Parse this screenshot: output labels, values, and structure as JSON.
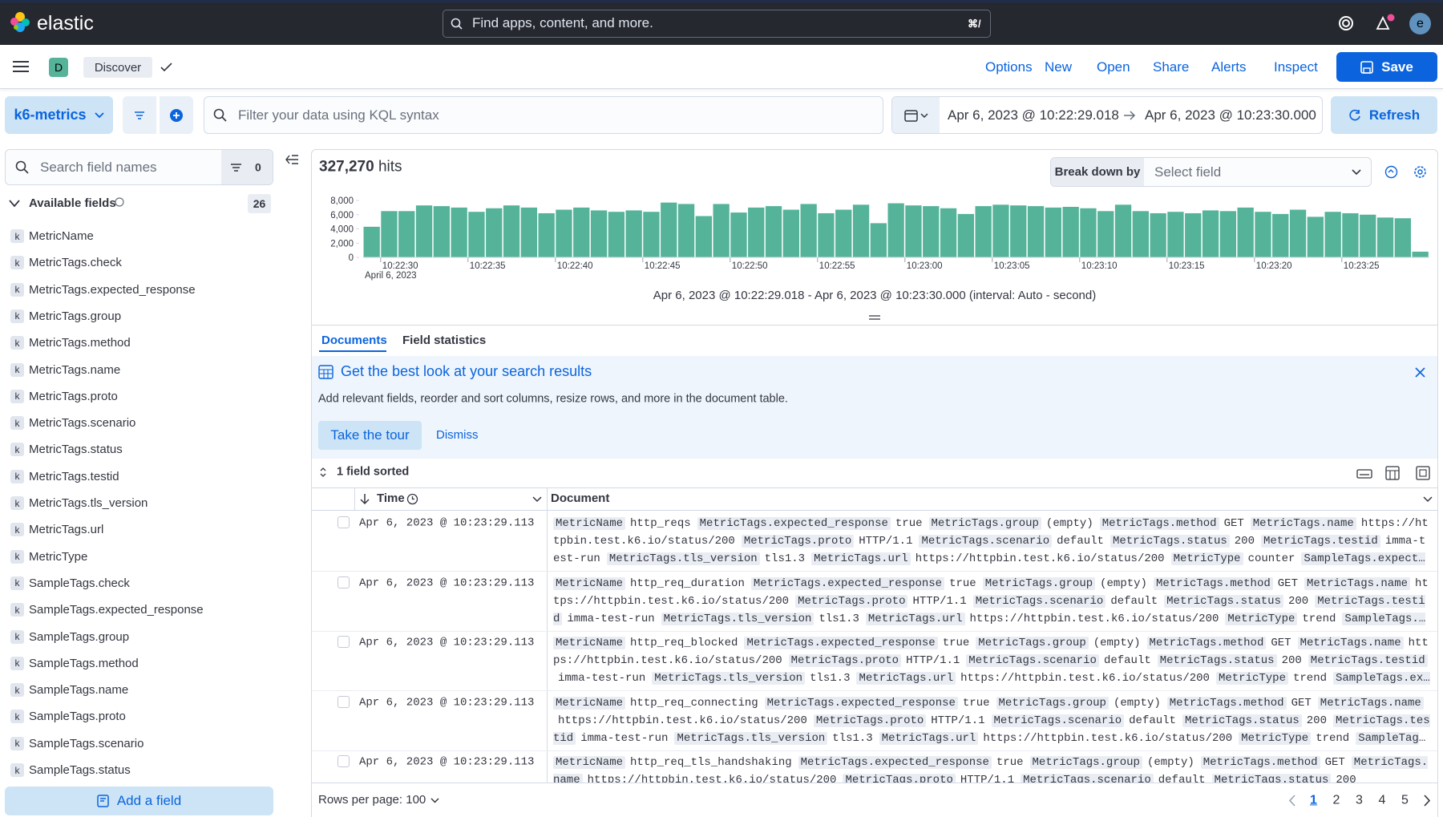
{
  "header": {
    "brand": "elastic",
    "search_placeholder": "Find apps, content, and more.",
    "shortcut": "⌘/",
    "avatar": "e"
  },
  "toolbar": {
    "space": "D",
    "app": "Discover",
    "links": [
      "Options",
      "New",
      "Open",
      "Share",
      "Alerts",
      "Inspect"
    ],
    "save": "Save"
  },
  "query_bar": {
    "data_view": "k6-metrics",
    "placeholder": "Filter your data using KQL syntax",
    "start": "Apr 6, 2023 @ 10:22:29.018",
    "end": "Apr 6, 2023 @ 10:23:30.000",
    "refresh": "Refresh"
  },
  "sidebar": {
    "search_placeholder": "Search field names",
    "filter_count": 0,
    "section": "Available fields",
    "field_count": 26,
    "field_type_icon": "k",
    "fields": [
      "MetricName",
      "MetricTags.check",
      "MetricTags.expected_response",
      "MetricTags.group",
      "MetricTags.method",
      "MetricTags.name",
      "MetricTags.proto",
      "MetricTags.scenario",
      "MetricTags.status",
      "MetricTags.testid",
      "MetricTags.tls_version",
      "MetricTags.url",
      "MetricType",
      "SampleTags.check",
      "SampleTags.expected_response",
      "SampleTags.group",
      "SampleTags.method",
      "SampleTags.name",
      "SampleTags.proto",
      "SampleTags.scenario",
      "SampleTags.status"
    ],
    "add_field": "Add a field"
  },
  "hits": {
    "count": "327,270",
    "label": "hits"
  },
  "break_down": {
    "label": "Break down by",
    "placeholder": "Select field"
  },
  "histogram": {
    "type": "bar",
    "color": "#54b399",
    "ylim": [
      0,
      8000
    ],
    "yticks": [
      {
        "value": 8000,
        "label": "8,000"
      },
      {
        "value": 6000,
        "label": "6,000"
      },
      {
        "value": 4000,
        "label": "4,000"
      },
      {
        "value": 2000,
        "label": "2,000"
      },
      0
    ],
    "categories": [
      null,
      "10:22:30",
      null,
      null,
      null,
      null,
      "10:22:35",
      null,
      null,
      null,
      null,
      "10:22:40",
      null,
      null,
      null,
      null,
      "10:22:45",
      null,
      null,
      null,
      null,
      "10:22:50",
      null,
      null,
      null,
      null,
      "10:22:55",
      null,
      null,
      null,
      null,
      "10:23:00",
      null,
      null,
      null,
      null,
      "10:23:05",
      null,
      null,
      null,
      null,
      "10:23:10",
      null,
      null,
      null,
      null,
      "10:23:15",
      null,
      null,
      null,
      null,
      "10:23:20",
      null,
      null,
      null,
      null,
      "10:23:25",
      null,
      null,
      null,
      null
    ],
    "values": [
      4300,
      6500,
      6500,
      7300,
      7200,
      7000,
      6400,
      6900,
      7300,
      7000,
      6200,
      6700,
      7000,
      6600,
      6400,
      6600,
      6400,
      7700,
      7500,
      5800,
      7500,
      6300,
      7000,
      7200,
      6700,
      7500,
      6200,
      6700,
      7400,
      4800,
      7600,
      7300,
      7200,
      6900,
      6100,
      7200,
      7400,
      7300,
      7200,
      7000,
      7100,
      6900,
      6500,
      7400,
      6500,
      6200,
      6400,
      6200,
      6600,
      6500,
      7000,
      6400,
      6100,
      6700,
      5700,
      6400,
      6200,
      6000,
      5600,
      5500,
      800
    ],
    "date_label": "April 6, 2023",
    "caption": "Apr 6, 2023 @ 10:22:29.018 - Apr 6, 2023 @ 10:23:30.000 (interval: Auto - second)"
  },
  "tabs": [
    "Documents",
    "Field statistics"
  ],
  "callout": {
    "title": "Get the best look at your search results",
    "text": "Add relevant fields, reorder and sort columns, resize rows, and more in the document table.",
    "tour": "Take the tour",
    "dismiss": "Dismiss"
  },
  "table": {
    "sorted": "1 field sorted",
    "columns": [
      "Time",
      "Document"
    ],
    "rows": [
      {
        "time": "Apr 6, 2023 @ 10:23:29.113",
        "fields": [
          [
            "MetricName",
            "http_reqs"
          ],
          [
            "MetricTags.expected_response",
            "true"
          ],
          [
            "MetricTags.group",
            "(empty)"
          ],
          [
            "MetricTags.method",
            "GET"
          ],
          [
            "MetricTags.name",
            "https://httpbin.test.k6.io/status/200"
          ],
          [
            "MetricTags.proto",
            "HTTP/1.1"
          ],
          [
            "MetricTags.scenario",
            "default"
          ],
          [
            "MetricTags.status",
            "200"
          ],
          [
            "MetricTags.testid",
            "imma-test-run"
          ],
          [
            "MetricTags.tls_version",
            "tls1.3"
          ],
          [
            "MetricTags.url",
            "https://httpbin.test.k6.io/status/200"
          ],
          [
            "MetricType",
            "counter"
          ],
          [
            "SampleTags.expected_response",
            "true"
          ]
        ]
      },
      {
        "time": "Apr 6, 2023 @ 10:23:29.113",
        "fields": [
          [
            "MetricName",
            "http_req_duration"
          ],
          [
            "MetricTags.expected_response",
            "true"
          ],
          [
            "MetricTags.group",
            "(empty)"
          ],
          [
            "MetricTags.method",
            "GET"
          ],
          [
            "MetricTags.name",
            "https://httpbin.test.k6.io/status/200"
          ],
          [
            "MetricTags.proto",
            "HTTP/1.1"
          ],
          [
            "MetricTags.scenario",
            "default"
          ],
          [
            "MetricTags.status",
            "200"
          ],
          [
            "MetricTags.testid",
            "imma-test-run"
          ],
          [
            "MetricTags.tls_version",
            "tls1.3"
          ],
          [
            "MetricTags.url",
            "https://httpbin.test.k6.io/status/200"
          ],
          [
            "MetricType",
            "trend"
          ],
          [
            "SampleTags.expected_response",
            "true"
          ]
        ]
      },
      {
        "time": "Apr 6, 2023 @ 10:23:29.113",
        "fields": [
          [
            "MetricName",
            "http_req_blocked"
          ],
          [
            "MetricTags.expected_response",
            "true"
          ],
          [
            "MetricTags.group",
            "(empty)"
          ],
          [
            "MetricTags.method",
            "GET"
          ],
          [
            "MetricTags.name",
            "https://httpbin.test.k6.io/status/200"
          ],
          [
            "MetricTags.proto",
            "HTTP/1.1"
          ],
          [
            "MetricTags.scenario",
            "default"
          ],
          [
            "MetricTags.status",
            "200"
          ],
          [
            "MetricTags.testid",
            "imma-test-run"
          ],
          [
            "MetricTags.tls_version",
            "tls1.3"
          ],
          [
            "MetricTags.url",
            "https://httpbin.test.k6.io/status/200"
          ],
          [
            "MetricType",
            "trend"
          ],
          [
            "SampleTags.expected_response",
            "true"
          ]
        ]
      },
      {
        "time": "Apr 6, 2023 @ 10:23:29.113",
        "fields": [
          [
            "MetricName",
            "http_req_connecting"
          ],
          [
            "MetricTags.expected_response",
            "true"
          ],
          [
            "MetricTags.group",
            "(empty)"
          ],
          [
            "MetricTags.method",
            "GET"
          ],
          [
            "MetricTags.name",
            "https://httpbin.test.k6.io/status/200"
          ],
          [
            "MetricTags.proto",
            "HTTP/1.1"
          ],
          [
            "MetricTags.scenario",
            "default"
          ],
          [
            "MetricTags.status",
            "200"
          ],
          [
            "MetricTags.testid",
            "imma-test-run"
          ],
          [
            "MetricTags.tls_version",
            "tls1.3"
          ],
          [
            "MetricTags.url",
            "https://httpbin.test.k6.io/status/200"
          ],
          [
            "MetricType",
            "trend"
          ],
          [
            "SampleTags.expected_response",
            "true"
          ]
        ]
      },
      {
        "time": "Apr 6, 2023 @ 10:23:29.113",
        "fields": [
          [
            "MetricName",
            "http_req_tls_handshaking"
          ],
          [
            "MetricTags.expected_response",
            "true"
          ],
          [
            "MetricTags.group",
            "(empty)"
          ],
          [
            "MetricTags.method",
            "GET"
          ],
          [
            "MetricTags.name",
            "https://httpbin.test.k6.io/status/200"
          ],
          [
            "MetricTags.proto",
            "HTTP/1.1"
          ],
          [
            "MetricTags.scenario",
            "default"
          ],
          [
            "MetricTags.status",
            "200"
          ]
        ]
      }
    ]
  },
  "footer": {
    "rows_per_page": "Rows per page: 100",
    "pages": [
      1,
      2,
      3,
      4,
      5
    ]
  }
}
